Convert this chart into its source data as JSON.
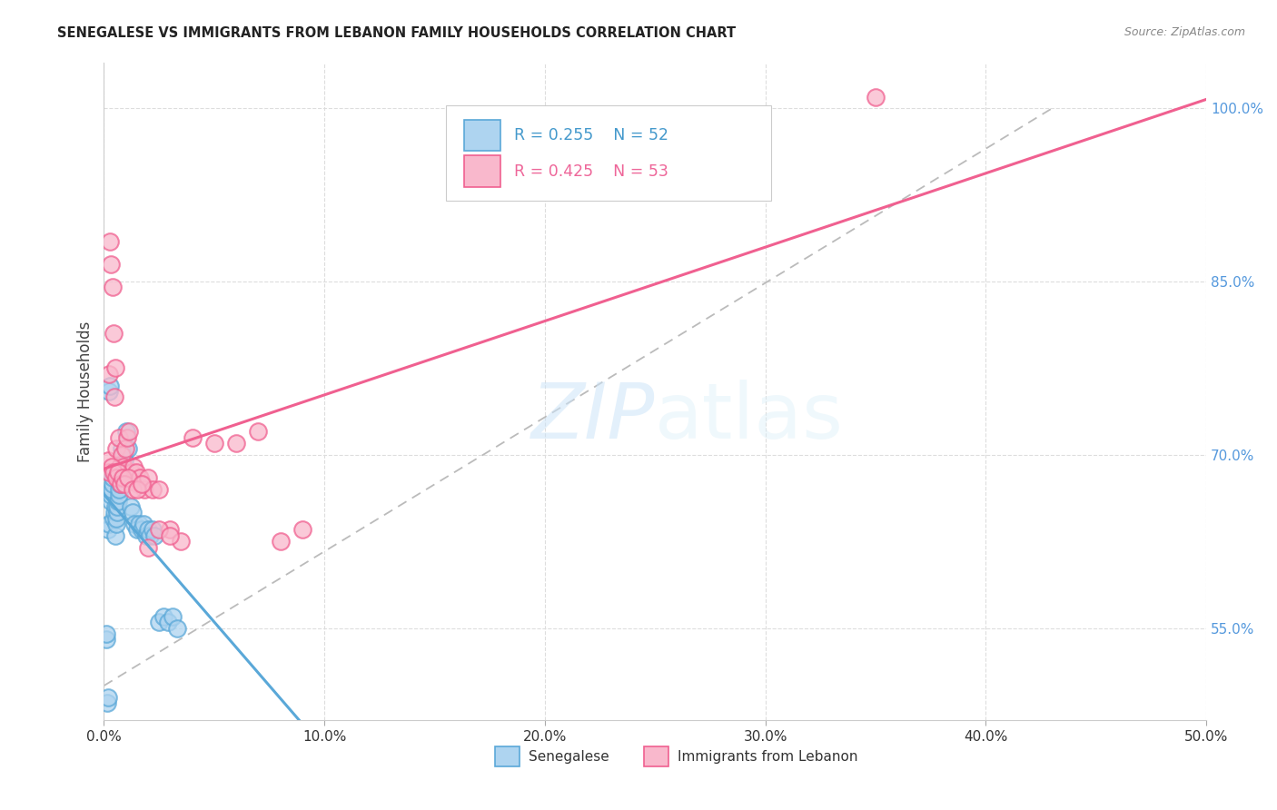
{
  "title": "SENEGALESE VS IMMIGRANTS FROM LEBANON FAMILY HOUSEHOLDS CORRELATION CHART",
  "source": "Source: ZipAtlas.com",
  "ylabel": "Family Households",
  "legend_label1": "Senegalese",
  "legend_label2": "Immigrants from Lebanon",
  "R1": "0.255",
  "N1": "52",
  "R2": "0.425",
  "N2": "53",
  "color_blue_fill": "#aed4f0",
  "color_blue_edge": "#5aa8d8",
  "color_pink_fill": "#f9b8cc",
  "color_pink_edge": "#f06090",
  "color_blue_line": "#5aa8d8",
  "color_pink_line": "#f06090",
  "color_dashed_ref": "#bbbbbb",
  "background": "#ffffff",
  "grid_color": "#dddddd",
  "xlim": [
    0.0,
    50.0
  ],
  "ylim": [
    47.0,
    104.0
  ],
  "x_ticks": [
    0,
    10,
    20,
    30,
    40,
    50
  ],
  "y_ticks": [
    55,
    70,
    85,
    100
  ],
  "blue_x": [
    0.15,
    0.18,
    0.2,
    0.22,
    0.25,
    0.28,
    0.3,
    0.32,
    0.35,
    0.38,
    0.4,
    0.42,
    0.45,
    0.48,
    0.5,
    0.52,
    0.55,
    0.58,
    0.6,
    0.62,
    0.65,
    0.68,
    0.7,
    0.72,
    0.75,
    0.78,
    0.8,
    0.85,
    0.9,
    0.95,
    1.0,
    1.05,
    1.1,
    1.2,
    1.3,
    1.4,
    1.5,
    1.6,
    1.7,
    1.8,
    1.9,
    2.0,
    2.1,
    2.2,
    2.3,
    2.5,
    2.7,
    2.9,
    3.1,
    3.3,
    0.1,
    0.12
  ],
  "blue_y": [
    48.5,
    49.0,
    63.5,
    64.0,
    75.5,
    76.0,
    66.0,
    66.5,
    67.0,
    67.5,
    68.0,
    68.5,
    64.5,
    65.0,
    65.5,
    63.0,
    64.0,
    64.5,
    65.0,
    65.5,
    66.0,
    66.5,
    67.0,
    67.5,
    68.0,
    68.5,
    70.5,
    68.0,
    70.0,
    69.5,
    72.0,
    68.0,
    70.5,
    65.5,
    65.0,
    64.0,
    63.5,
    64.0,
    63.5,
    64.0,
    63.0,
    63.5,
    63.0,
    63.5,
    63.0,
    55.5,
    56.0,
    55.5,
    56.0,
    55.0,
    54.0,
    54.5
  ],
  "pink_x": [
    0.18,
    0.22,
    0.28,
    0.32,
    0.38,
    0.42,
    0.48,
    0.52,
    0.58,
    0.62,
    0.68,
    0.72,
    0.78,
    0.82,
    0.88,
    0.92,
    0.98,
    1.05,
    1.15,
    1.25,
    1.35,
    1.45,
    1.55,
    1.65,
    1.75,
    1.85,
    2.0,
    2.2,
    2.5,
    3.0,
    3.5,
    4.0,
    5.0,
    6.0,
    7.0,
    8.0,
    9.0,
    0.25,
    0.35,
    0.45,
    0.55,
    0.65,
    0.75,
    0.85,
    0.95,
    1.1,
    1.3,
    1.5,
    1.7,
    2.0,
    2.5,
    3.0,
    35.0
  ],
  "pink_y": [
    69.5,
    77.0,
    88.5,
    86.5,
    84.5,
    80.5,
    75.0,
    77.5,
    70.5,
    68.0,
    71.5,
    69.0,
    68.5,
    70.0,
    69.0,
    68.0,
    70.5,
    71.5,
    72.0,
    68.5,
    69.0,
    68.5,
    67.5,
    68.0,
    67.5,
    67.0,
    68.0,
    67.0,
    67.0,
    63.5,
    62.5,
    71.5,
    71.0,
    71.0,
    72.0,
    62.5,
    63.5,
    68.5,
    69.0,
    68.5,
    68.0,
    68.5,
    67.5,
    68.0,
    67.5,
    68.0,
    67.0,
    67.0,
    67.5,
    62.0,
    63.5,
    63.0,
    101.0
  ],
  "ref_line_x": [
    0.0,
    43.0
  ],
  "ref_line_y": [
    50.0,
    100.0
  ]
}
